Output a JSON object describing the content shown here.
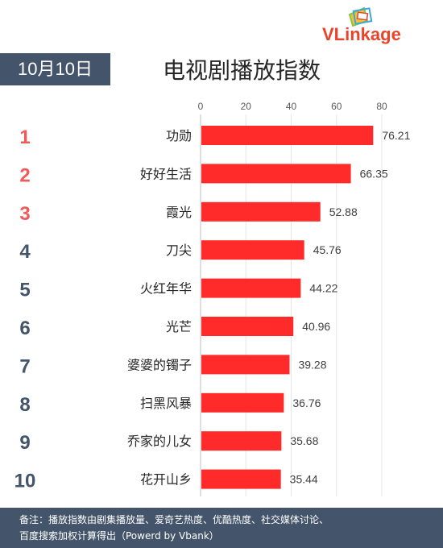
{
  "logo": {
    "brand": "VLinkage",
    "part1": "VL",
    "part2": "inkage"
  },
  "date": "10月10日",
  "title": "电视剧播放指数",
  "chart_data": {
    "type": "bar",
    "orientation": "horizontal",
    "title": "电视剧播放指数",
    "xlim": [
      0,
      80
    ],
    "x_ticks": [
      0,
      20,
      40,
      60,
      80
    ],
    "grid": true,
    "bar_color": "#ff2a2a",
    "rank_colors": {
      "top3": "#f25a5a",
      "other": "#44546a"
    },
    "ranks": [
      "1",
      "2",
      "3",
      "4",
      "5",
      "6",
      "7",
      "8",
      "9",
      "10"
    ],
    "categories": [
      "功勋",
      "好好生活",
      "霞光",
      "刀尖",
      "火红年华",
      "光芒",
      "婆婆的镯子",
      "扫黑风暴",
      "乔家的儿女",
      "花开山乡"
    ],
    "values": [
      76.21,
      66.35,
      52.88,
      45.76,
      44.22,
      40.96,
      39.28,
      36.76,
      35.68,
      35.44
    ],
    "value_labels": [
      "76.21",
      "66.35",
      "52.88",
      "45.76",
      "44.22",
      "40.96",
      "39.28",
      "36.76",
      "35.68",
      "35.44"
    ]
  },
  "footer": {
    "line1": "备注：播放指数由剧集播放量、爱奇艺热度、优酷热度、社交媒体讨论、",
    "line2": "百度搜索加权计算得出（Powerd by Vbank）"
  }
}
